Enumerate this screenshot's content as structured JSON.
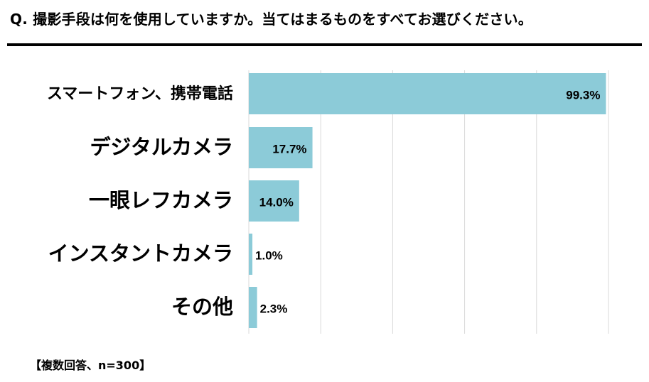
{
  "question": "Q. 撮影手段は何を使用していますか。当てはまるものをすべてお選びください。",
  "footnote": "【複数回答、n=300】",
  "chart_data": {
    "type": "bar",
    "orientation": "horizontal",
    "categories": [
      "スマートフォン、携帯電話",
      "デジタルカメラ",
      "一眼レフカメラ",
      "インスタントカメラ",
      "その他"
    ],
    "values": [
      99.3,
      17.7,
      14.0,
      1.0,
      2.3
    ],
    "value_labels": [
      "99.3%",
      "17.7%",
      "14.0%",
      "1.0%",
      "2.3%"
    ],
    "unit": "%",
    "xlim": [
      0,
      100
    ],
    "grid": true,
    "bar_color": "#8ccbd8",
    "grid_color": "#d9d9d9"
  }
}
